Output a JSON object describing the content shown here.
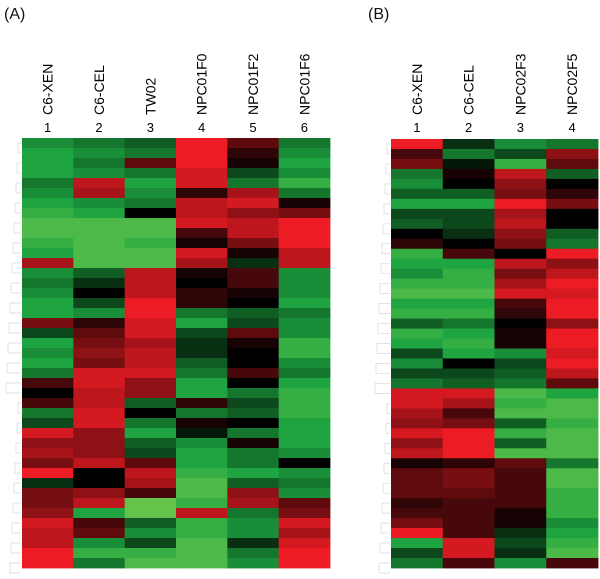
{
  "chart_data": [
    {
      "type": "heatmap",
      "panel_label": "(A)",
      "columns": [
        {
          "label": "C6-XEN",
          "number": "1"
        },
        {
          "label": "C6-CEL",
          "number": "2"
        },
        {
          "label": "TW02",
          "number": "3"
        },
        {
          "label": "NPC01F0",
          "number": "4"
        },
        {
          "label": "NPC01F2",
          "number": "5"
        },
        {
          "label": "NPC01F6",
          "number": "6"
        }
      ],
      "color_scale": {
        "low": "#6cc24a",
        "mid": "#000000",
        "high": "#ed1c24"
      },
      "value_range": [
        -1,
        1
      ],
      "rows": [
        [
          -0.6,
          -0.5,
          -0.4,
          1,
          0.4,
          -0.5
        ],
        [
          -0.7,
          -0.6,
          -0.5,
          1,
          0.2,
          -0.6
        ],
        [
          -0.7,
          -0.5,
          0.4,
          1,
          0.1,
          -0.7
        ],
        [
          -0.7,
          -0.6,
          -0.5,
          0.9,
          -0.3,
          -0.6
        ],
        [
          -0.5,
          0.8,
          -0.7,
          0.9,
          -0.5,
          -0.8
        ],
        [
          -0.6,
          0.7,
          -0.6,
          0.2,
          0.7,
          -0.5
        ],
        [
          -0.7,
          -0.6,
          -0.5,
          0.8,
          0.9,
          0.1
        ],
        [
          -0.8,
          -0.7,
          0.0,
          0.8,
          0.6,
          0.5
        ],
        [
          -0.9,
          -0.9,
          -0.9,
          0.9,
          0.8,
          1
        ],
        [
          -0.9,
          -0.9,
          -0.9,
          0.3,
          0.8,
          1
        ],
        [
          -0.8,
          -0.9,
          -0.8,
          0.1,
          0.5,
          1
        ],
        [
          -0.7,
          -0.9,
          -0.9,
          0.9,
          0.1,
          0.8
        ],
        [
          0.7,
          -0.9,
          -0.9,
          0.7,
          -0.2,
          0.8
        ],
        [
          -0.6,
          -0.4,
          0.8,
          0.1,
          0.3,
          -0.6
        ],
        [
          -0.5,
          -0.2,
          0.8,
          0.0,
          0.3,
          -0.6
        ],
        [
          -0.6,
          0.0,
          0.8,
          0.2,
          0.1,
          -0.6
        ],
        [
          -0.7,
          -0.3,
          1,
          0.2,
          0.0,
          -0.7
        ],
        [
          -0.7,
          -0.6,
          1,
          -0.5,
          -0.4,
          -0.5
        ],
        [
          0.5,
          0.2,
          0.9,
          -0.7,
          -0.3,
          -0.6
        ],
        [
          -0.3,
          0.4,
          0.9,
          -0.3,
          0.4,
          -0.6
        ],
        [
          -0.7,
          0.5,
          0.7,
          -0.2,
          0.1,
          -0.8
        ],
        [
          -0.6,
          0.6,
          0.8,
          -0.2,
          0.0,
          -0.8
        ],
        [
          -0.7,
          0.5,
          0.8,
          -0.4,
          0.0,
          -0.6
        ],
        [
          -0.5,
          0.9,
          0.9,
          -0.5,
          0.3,
          -0.5
        ],
        [
          0.3,
          0.9,
          0.6,
          -0.7,
          0.0,
          -0.7
        ],
        [
          0.0,
          0.8,
          0.6,
          -0.7,
          -0.5,
          -0.8
        ],
        [
          0.3,
          0.8,
          -0.4,
          0.2,
          -0.3,
          -0.8
        ],
        [
          -0.5,
          0.9,
          0.0,
          -0.5,
          -0.4,
          -0.8
        ],
        [
          -0.3,
          0.9,
          -0.5,
          0.1,
          0.0,
          -0.7
        ],
        [
          0.9,
          0.6,
          -0.7,
          -0.1,
          -0.5,
          -0.7
        ],
        [
          0.6,
          0.6,
          -0.4,
          -0.6,
          0.1,
          -0.7
        ],
        [
          0.7,
          0.6,
          -0.3,
          -0.7,
          -0.5,
          -0.6
        ],
        [
          0.5,
          0.8,
          0.4,
          -0.7,
          -0.5,
          0.0
        ],
        [
          1,
          0.0,
          0.8,
          -0.8,
          -0.7,
          -0.6
        ],
        [
          -0.2,
          0.0,
          0.7,
          -0.9,
          -0.4,
          -0.5
        ],
        [
          0.5,
          0.6,
          0.3,
          -0.9,
          0.6,
          -0.6
        ],
        [
          0.5,
          0.8,
          -1,
          -0.8,
          0.7,
          0.4
        ],
        [
          0.6,
          -0.7,
          -1,
          0.8,
          -0.5,
          0.5
        ],
        [
          0.9,
          0.3,
          -0.4,
          -0.8,
          -0.6,
          0.9
        ],
        [
          0.8,
          0.4,
          -0.6,
          -0.8,
          -0.6,
          0.7
        ],
        [
          0.8,
          -0.6,
          -0.3,
          -0.9,
          -0.2,
          0.9
        ],
        [
          1,
          -0.8,
          -0.8,
          -0.9,
          -0.5,
          1
        ],
        [
          1,
          -0.5,
          -0.9,
          -0.9,
          -0.6,
          1
        ]
      ]
    },
    {
      "type": "heatmap",
      "panel_label": "(B)",
      "columns": [
        {
          "label": "C6-XEN",
          "number": "1"
        },
        {
          "label": "C6-CEL",
          "number": "2"
        },
        {
          "label": "NPC02F3",
          "number": "3"
        },
        {
          "label": "NPC02F5",
          "number": "4"
        }
      ],
      "color_scale": {
        "low": "#6cc24a",
        "mid": "#000000",
        "high": "#ed1c24"
      },
      "value_range": [
        -1,
        1
      ],
      "rows": [
        [
          1,
          -0.2,
          -0.6,
          -0.5
        ],
        [
          0.3,
          -0.5,
          -0.3,
          0.6
        ],
        [
          0.5,
          -0.1,
          -0.8,
          0.4
        ],
        [
          -0.5,
          0.1,
          0.8,
          -0.4
        ],
        [
          -0.6,
          0.0,
          0.6,
          0.0
        ],
        [
          -0.4,
          -0.4,
          0.5,
          0.2
        ],
        [
          -0.7,
          -0.7,
          1,
          0.5
        ],
        [
          -0.3,
          -0.3,
          0.7,
          0.0
        ],
        [
          -0.4,
          -0.3,
          0.8,
          0.0
        ],
        [
          0.0,
          -0.2,
          0.6,
          -0.4
        ],
        [
          0.2,
          0.0,
          0.5,
          -0.5
        ],
        [
          -0.8,
          0.3,
          0.0,
          1
        ],
        [
          -0.7,
          -0.7,
          0.8,
          0.6
        ],
        [
          -0.6,
          -0.8,
          0.5,
          0.8
        ],
        [
          -0.8,
          -0.8,
          0.7,
          1
        ],
        [
          -0.9,
          -0.9,
          0.9,
          0.9
        ],
        [
          -0.7,
          -0.7,
          0.3,
          1
        ],
        [
          -0.8,
          -0.8,
          0.2,
          1
        ],
        [
          -0.4,
          -0.5,
          0.0,
          0.6
        ],
        [
          -0.8,
          -0.7,
          0.1,
          1
        ],
        [
          -0.7,
          -0.8,
          0.1,
          1
        ],
        [
          -0.3,
          -0.7,
          -0.6,
          0.9
        ],
        [
          -0.6,
          0.0,
          -0.3,
          1
        ],
        [
          -0.3,
          -0.3,
          -0.4,
          0.8
        ],
        [
          -0.5,
          -0.4,
          -0.5,
          0.4
        ],
        [
          0.9,
          0.9,
          -0.9,
          -0.7
        ],
        [
          0.9,
          0.7,
          -0.8,
          -0.9
        ],
        [
          0.7,
          0.3,
          -0.9,
          -0.9
        ],
        [
          0.6,
          0.5,
          -0.4,
          -0.8
        ],
        [
          0.9,
          1,
          -0.8,
          -0.9
        ],
        [
          0.6,
          1,
          -0.4,
          -0.9
        ],
        [
          0.8,
          1,
          -0.9,
          -0.9
        ],
        [
          0.1,
          0.2,
          0.4,
          -0.5
        ],
        [
          0.4,
          0.5,
          0.3,
          -0.9
        ],
        [
          0.4,
          0.5,
          0.3,
          -0.9
        ],
        [
          0.4,
          0.4,
          0.3,
          -0.8
        ],
        [
          0.2,
          0.3,
          0.3,
          -0.8
        ],
        [
          0.3,
          0.3,
          0.1,
          -0.8
        ],
        [
          0.5,
          0.3,
          0.1,
          -0.6
        ],
        [
          1,
          0.3,
          -0.2,
          -0.7
        ],
        [
          -0.7,
          0.9,
          -0.3,
          -0.8
        ],
        [
          -0.3,
          0.9,
          -0.2,
          -0.9
        ],
        [
          -0.5,
          0.3,
          -0.6,
          0.3
        ]
      ]
    }
  ]
}
